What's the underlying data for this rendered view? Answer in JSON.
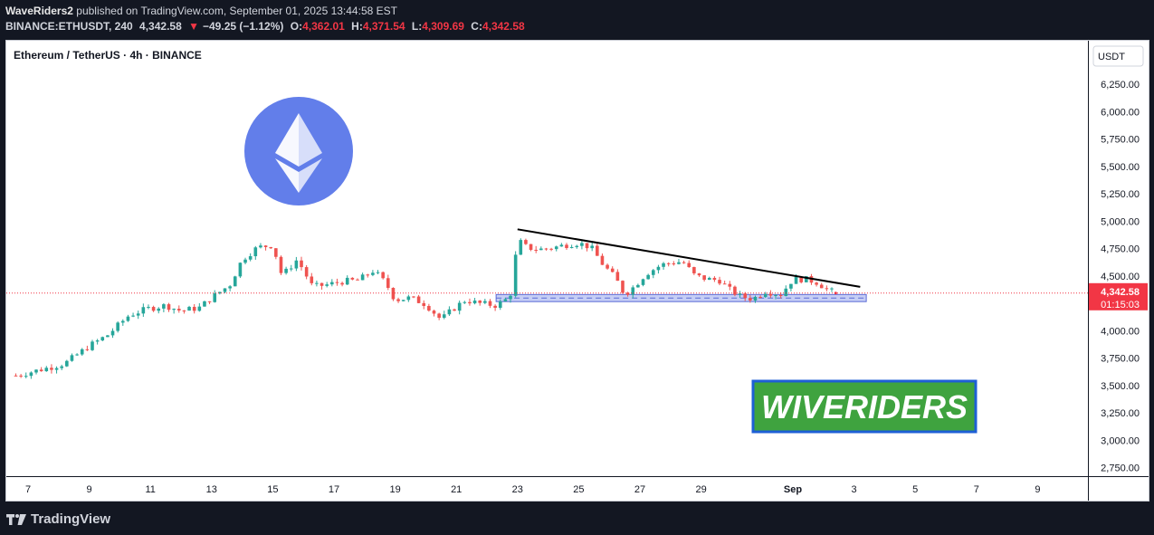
{
  "header": {
    "author": "WaveRiders2",
    "published_text": "published on TradingView.com, September 01, 2025 13:44:58 EST",
    "symbol_line": "BINANCE:ETHUSDT, 240",
    "last_price": "4,342.58",
    "change": "−49.25 (−1.12%)",
    "open_label": "O:",
    "open": "4,362.01",
    "high_label": "H:",
    "high": "4,371.54",
    "low_label": "L:",
    "low": "4,309.69",
    "close_label": "C:",
    "close": "4,342.58",
    "down_arrow": "▼"
  },
  "chart_title": "Ethereum / TetherUS · 4h · BINANCE",
  "currency_label": "USDT",
  "price_label": "4,342.58",
  "countdown_label": "01:15:03",
  "watermark_text": "WIVERIDERS",
  "footer": {
    "brand": "TradingView"
  },
  "colors": {
    "up": "#26a69a",
    "down": "#ef5350",
    "price_tag": "#f23645",
    "zone_fill": "#b3bdf2",
    "zone_border": "#5b6bd6",
    "logo_circle": "#627eea",
    "watermark_bg": "#3fa33f",
    "watermark_border": "#1e5fd6"
  },
  "chart_data": {
    "type": "candlestick",
    "title": "Ethereum / TetherUS · 4h · BINANCE",
    "y_ticks": [
      "6,250.00",
      "6,000.00",
      "5,750.00",
      "5,500.00",
      "5,250.00",
      "5,000.00",
      "4,750.00",
      "4,500.00",
      "4,250.00",
      "4,000.00",
      "3,750.00",
      "3,500.00",
      "3,250.00",
      "3,000.00",
      "2,750.00"
    ],
    "y_tick_values": [
      6250,
      6000,
      5750,
      5500,
      5250,
      5000,
      4750,
      4500,
      4250,
      4000,
      3750,
      3500,
      3250,
      3000,
      2750
    ],
    "x_ticks": [
      "7",
      "9",
      "11",
      "13",
      "15",
      "17",
      "19",
      "21",
      "23",
      "25",
      "27",
      "29",
      "Sep",
      "3",
      "5",
      "7",
      "9"
    ],
    "x_tick_days": [
      7,
      9,
      11,
      13,
      15,
      17,
      19,
      21,
      23,
      25,
      27,
      29,
      32,
      34,
      36,
      38,
      40
    ],
    "last_price": 4342.58,
    "support_zone": {
      "from_day": 22.3,
      "to_day": 34.4,
      "low": 4265,
      "high": 4330
    },
    "trendline": [
      {
        "day": 23.0,
        "price": 4925
      },
      {
        "day": 34.2,
        "price": 4400
      }
    ],
    "price_path": [
      [
        6.6,
        3590
      ],
      [
        7.5,
        3650
      ],
      [
        8.2,
        3700
      ],
      [
        9.0,
        3860
      ],
      [
        9.6,
        3960
      ],
      [
        10.3,
        4140
      ],
      [
        10.9,
        4200
      ],
      [
        11.5,
        4230
      ],
      [
        12.0,
        4180
      ],
      [
        12.6,
        4210
      ],
      [
        13.0,
        4300
      ],
      [
        13.6,
        4420
      ],
      [
        14.0,
        4650
      ],
      [
        14.5,
        4760
      ],
      [
        15.0,
        4780
      ],
      [
        15.3,
        4500
      ],
      [
        15.8,
        4650
      ],
      [
        16.3,
        4400
      ],
      [
        16.8,
        4420
      ],
      [
        17.3,
        4450
      ],
      [
        17.8,
        4460
      ],
      [
        18.3,
        4550
      ],
      [
        18.7,
        4430
      ],
      [
        19.0,
        4280
      ],
      [
        19.5,
        4300
      ],
      [
        20.0,
        4240
      ],
      [
        20.5,
        4100
      ],
      [
        20.9,
        4200
      ],
      [
        21.3,
        4280
      ],
      [
        21.7,
        4250
      ],
      [
        22.3,
        4230
      ],
      [
        22.6,
        4280
      ],
      [
        22.8,
        4350
      ],
      [
        23.0,
        4830
      ],
      [
        23.3,
        4760
      ],
      [
        23.7,
        4740
      ],
      [
        24.2,
        4760
      ],
      [
        24.7,
        4790
      ],
      [
        25.0,
        4800
      ],
      [
        25.4,
        4760
      ],
      [
        25.8,
        4600
      ],
      [
        26.2,
        4480
      ],
      [
        26.5,
        4330
      ],
      [
        26.8,
        4400
      ],
      [
        27.2,
        4520
      ],
      [
        27.7,
        4600
      ],
      [
        28.0,
        4620
      ],
      [
        28.4,
        4630
      ],
      [
        28.8,
        4500
      ],
      [
        29.2,
        4470
      ],
      [
        29.6,
        4460
      ],
      [
        29.9,
        4380
      ],
      [
        30.3,
        4310
      ],
      [
        30.7,
        4290
      ],
      [
        31.1,
        4360
      ],
      [
        31.6,
        4330
      ],
      [
        32.0,
        4470
      ],
      [
        32.4,
        4470
      ],
      [
        32.8,
        4440
      ],
      [
        33.1,
        4380
      ],
      [
        33.4,
        4342.58
      ]
    ]
  }
}
